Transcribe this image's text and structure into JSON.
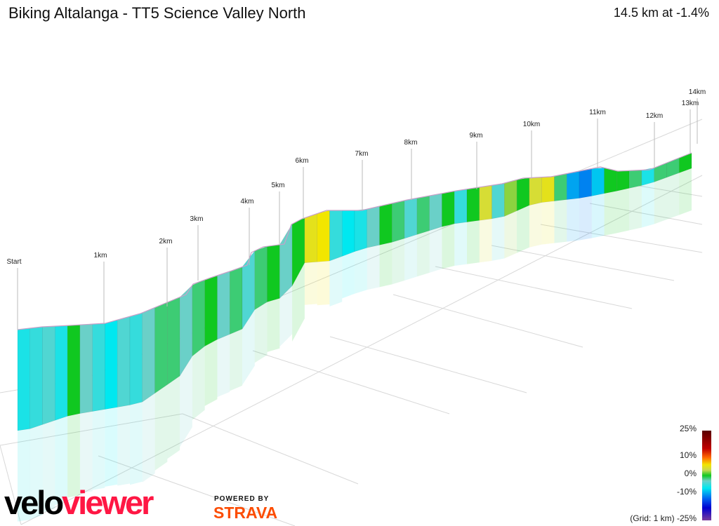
{
  "header": {
    "title": "Biking Altalanga - TT5 Science Valley North",
    "summary": "14.5 km at -1.4%"
  },
  "chart_data": {
    "type": "area",
    "title": "Biking Altalanga - TT5 Science Valley North",
    "distance_km": 14.5,
    "average_grade_pct": -1.4,
    "km_markers": [
      "Start",
      "1km",
      "2km",
      "3km",
      "4km",
      "5km",
      "6km",
      "7km",
      "8km",
      "9km",
      "10km",
      "11km",
      "12km",
      "13km",
      "14km"
    ],
    "segment_grades_pct": [
      -5,
      -4,
      -3,
      -5,
      0,
      -2,
      -4,
      -6,
      -3,
      -4,
      -2,
      -1,
      -1,
      -2,
      -1,
      0,
      -2,
      -1,
      -3,
      -1,
      0,
      -2,
      0,
      5,
      6,
      -4,
      -6,
      -5,
      -2,
      0,
      -1,
      -3,
      -1,
      -2,
      0,
      -4,
      0,
      4,
      -3,
      2,
      0,
      4,
      5,
      -1,
      -8,
      -9,
      -7,
      0,
      0,
      -1,
      -5,
      -1,
      -1,
      0
    ],
    "legend": {
      "labels": [
        "25%",
        "10%",
        "0%",
        "-10%",
        "-25%"
      ],
      "grid_note": "(Grid: 1 km)"
    },
    "colors": {
      "flat": "#10c820",
      "down": "#00e8f0",
      "up": "#f2e600",
      "steep_up": "#c00000",
      "steep_down": "#0000d0"
    }
  },
  "branding": {
    "logo_part1": "velo",
    "logo_part2": "viewer",
    "powered_by": "POWERED BY",
    "strava": "STRAVA"
  }
}
